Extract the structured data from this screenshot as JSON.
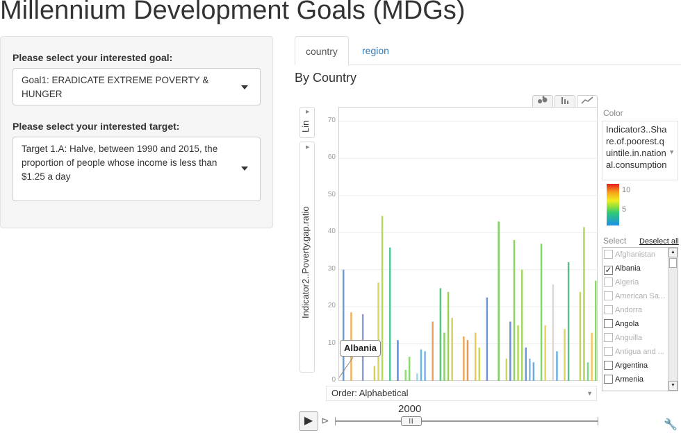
{
  "page": {
    "title": "Millennium Development Goals (MDGs)"
  },
  "sidebar": {
    "goal_label": "Please select your interested goal:",
    "goal_value": "Goal1: ERADICATE EXTREME POVERTY & HUNGER",
    "target_label": "Please select your interested target:",
    "target_value": "Target 1.A: Halve, between 1990 and 2015, the proportion of people whose income is less than $1.25 a day"
  },
  "tabs": [
    {
      "label": "country",
      "active": true
    },
    {
      "label": "region",
      "active": false
    }
  ],
  "section_title": "By Country",
  "motion_chart": {
    "chart_type_icons": [
      "bubble-chart-icon",
      "bar-chart-icon",
      "line-chart-icon"
    ],
    "scale_label": "Lin",
    "y_axis_label": "Indicator2..Poverty.gap.ratio",
    "y_ticks": [
      "0",
      "10",
      "20",
      "30",
      "40",
      "50",
      "60",
      "70"
    ],
    "order_label": "Order: Alphabetical",
    "tooltip": "Albania",
    "color_label": "Color",
    "color_value": "Indicator3..Share.of.poorest.quintile.in.national.consumption",
    "legend_ticks": [
      "10",
      "5"
    ],
    "select_label": "Select",
    "deselect_label": "Deselect all",
    "countries": [
      {
        "name": "Afghanistan",
        "checked": false,
        "has_data": false
      },
      {
        "name": "Albania",
        "checked": true,
        "has_data": true
      },
      {
        "name": "Algeria",
        "checked": false,
        "has_data": false
      },
      {
        "name": "American Sa...",
        "checked": false,
        "has_data": false
      },
      {
        "name": "Andorra",
        "checked": false,
        "has_data": false
      },
      {
        "name": "Angola",
        "checked": false,
        "has_data": true
      },
      {
        "name": "Anguilla",
        "checked": false,
        "has_data": false
      },
      {
        "name": "Antigua and ...",
        "checked": false,
        "has_data": false
      },
      {
        "name": "Argentina",
        "checked": false,
        "has_data": true
      },
      {
        "name": "Armenia",
        "checked": false,
        "has_data": true
      }
    ],
    "year": "2000",
    "year_progress": 0.29
  },
  "chart_data": {
    "type": "bar",
    "ylabel": "Indicator2..Poverty.gap.ratio",
    "ylim": [
      0,
      70
    ],
    "values": [
      30,
      0,
      18.5,
      0,
      0,
      18,
      0,
      0,
      4,
      26.5,
      44.5,
      0,
      36,
      0,
      11,
      0,
      3,
      6.5,
      0,
      2,
      8.5,
      8,
      0,
      16,
      0,
      25,
      13,
      24,
      17,
      0,
      0,
      12,
      11,
      0,
      13,
      9,
      0,
      22.5,
      0,
      0,
      43,
      0,
      6,
      16,
      38,
      15,
      30,
      9,
      6,
      5,
      0,
      37,
      15,
      0,
      26,
      8,
      0,
      14,
      32,
      0,
      0,
      24,
      41.5,
      5,
      13,
      27
    ],
    "colors": [
      "#6b9cd7",
      "#a8d86a",
      "#f0b25a",
      "#e8d460",
      "#c9c23c",
      "#8a99d6",
      "#b6d65c",
      "#c5d85b",
      "#d9cf58",
      "#d7d65e",
      "#b7da5c",
      "#9fd66d",
      "#52c99a",
      "#7fbfe6",
      "#5d8fd6",
      "#94d06c",
      "#8ee07a",
      "#88d66e",
      "#c4d65c",
      "#9fd7ea",
      "#6ab8e0",
      "#7fb1e4",
      "#e8d25a",
      "#f0a05c",
      "#c8d860",
      "#5ec47e",
      "#8cd06a",
      "#9ccf5c",
      "#d6d25c",
      "#e0c45c",
      "#a0d86a",
      "#f0a858",
      "#e29a58",
      "#c6d860",
      "#eac65a",
      "#ccd85c",
      "#9ed66a",
      "#6b98d8",
      "#8ad870",
      "#b0d86c",
      "#7cd064",
      "#8ed46a",
      "#c8d85c",
      "#6a8fd8",
      "#8ad468",
      "#b4da5c",
      "#a6d45e",
      "#6a9cd8",
      "#7fb7e6",
      "#6fa8e0",
      "#c8d65a",
      "#86d46c",
      "#e8d45a",
      "#d0d0d0",
      "#d8d8d8",
      "#6ab0e4",
      "#d8c85c",
      "#e2cf5e",
      "#5fbf88",
      "#c4d45c",
      "#9fd46a",
      "#c6d65c",
      "#b4d65c",
      "#7fd48a",
      "#f0cc5c",
      "#8ed46a"
    ]
  }
}
